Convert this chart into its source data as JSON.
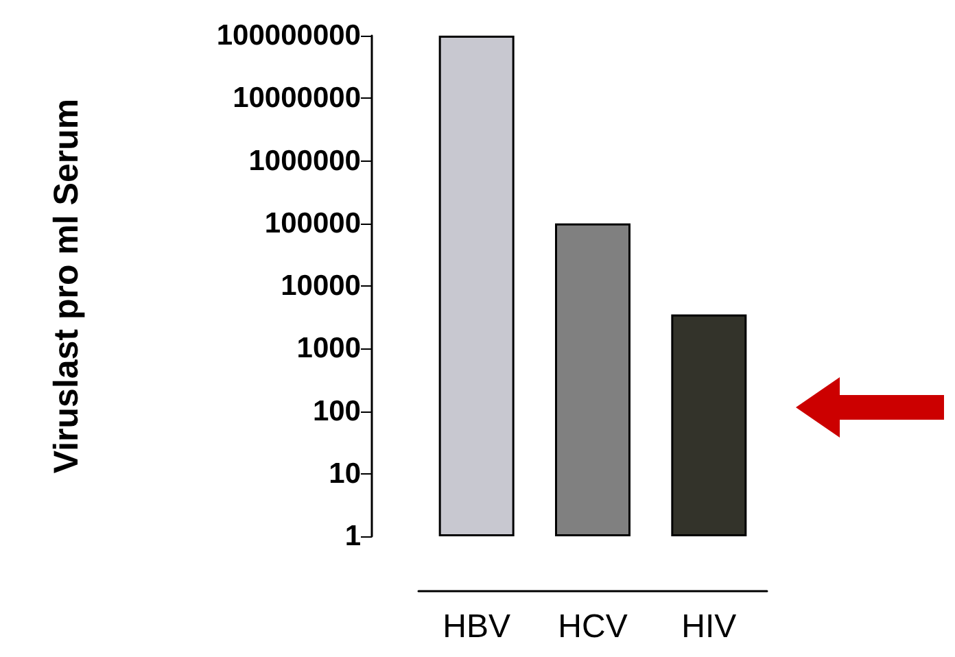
{
  "chart_data": {
    "type": "bar",
    "ylabel": "Viruslast pro ml Serum",
    "categories": [
      "HBV",
      "HCV",
      "HIV"
    ],
    "values": [
      100000000,
      100000,
      3500
    ],
    "colors": [
      "#c8c8d0",
      "#808080",
      "#33332a"
    ],
    "log": true,
    "ylim": [
      1,
      100000000
    ],
    "yticks": [
      1,
      10,
      100,
      1000,
      10000,
      100000,
      1000000,
      10000000,
      100000000
    ],
    "grid": false
  }
}
